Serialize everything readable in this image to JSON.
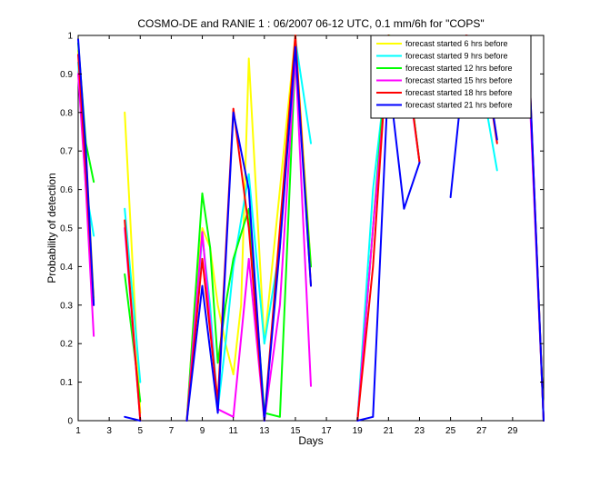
{
  "chart_data": {
    "type": "line",
    "title": "COSMO-DE and RANIE 1 : 06/2007 06-12 UTC, 0.1 mm/6h for \"COPS\"",
    "xlabel": "Days",
    "ylabel": "Probability of detection",
    "xlim": [
      1,
      31
    ],
    "ylim": [
      0,
      1
    ],
    "xticks": [
      1,
      3,
      5,
      7,
      9,
      11,
      13,
      15,
      17,
      19,
      21,
      23,
      25,
      27,
      29
    ],
    "yticks": [
      0,
      0.1,
      0.2,
      0.3,
      0.4,
      0.5,
      0.6,
      0.7,
      0.8,
      0.9,
      1
    ],
    "ytick_labels": [
      "0",
      "0.1",
      "0.2",
      "0.3",
      "0.4",
      "0.5",
      "0.6",
      "0.7",
      "0.8",
      "0.9",
      "1"
    ],
    "legend_position": "top-right",
    "grid": false,
    "series": [
      {
        "name": "forecast started 6 hrs before",
        "color": "#ffff00",
        "x": [
          1,
          1.5,
          2,
          null,
          4,
          5,
          null,
          8,
          8.5,
          9,
          9.5,
          10,
          10.5,
          11,
          11.5,
          12,
          13,
          14,
          15,
          16,
          null,
          19,
          20,
          20.5,
          21,
          22,
          23,
          null,
          25,
          26,
          27,
          28,
          null,
          30,
          31
        ],
        "y": [
          0.96,
          0.7,
          0.32,
          null,
          0.8,
          0.02,
          null,
          0.0,
          0.3,
          0.5,
          0.45,
          0.3,
          0.2,
          0.12,
          0.3,
          0.94,
          0.2,
          0.6,
          1.0,
          0.4,
          null,
          0.0,
          0.5,
          0.75,
          1.0,
          0.99,
          0.67,
          null,
          0.82,
          0.99,
          0.99,
          0.73,
          null,
          0.98,
          0.0
        ]
      },
      {
        "name": "forecast started 9 hrs before",
        "color": "#00ffff",
        "x": [
          1,
          1.5,
          2,
          null,
          4,
          5,
          null,
          8,
          9,
          9.5,
          10,
          10.5,
          11,
          12,
          13,
          14,
          15,
          16,
          null,
          19,
          20,
          21,
          22,
          23,
          null,
          25,
          26,
          27,
          28,
          null,
          30,
          31
        ],
        "y": [
          0.93,
          0.6,
          0.48,
          null,
          0.55,
          0.1,
          null,
          0.0,
          0.48,
          0.3,
          0.03,
          0.2,
          0.4,
          0.64,
          0.2,
          0.45,
          0.99,
          0.72,
          null,
          0.0,
          0.6,
          0.95,
          0.99,
          0.67,
          null,
          0.84,
          0.96,
          0.88,
          0.65,
          null,
          0.96,
          0.0
        ]
      },
      {
        "name": "forecast started 12 hrs before",
        "color": "#00ff00",
        "x": [
          1,
          1.5,
          2,
          null,
          4,
          5,
          null,
          8,
          9,
          9.5,
          10,
          10.5,
          11,
          12,
          13,
          14,
          15,
          16,
          null,
          19,
          20,
          21,
          22,
          23,
          null,
          25,
          26,
          27,
          28,
          null,
          30,
          31
        ],
        "y": [
          0.98,
          0.72,
          0.62,
          null,
          0.38,
          0.05,
          null,
          0.0,
          0.59,
          0.45,
          0.15,
          0.3,
          0.42,
          0.55,
          0.02,
          0.01,
          0.95,
          0.4,
          null,
          0.0,
          0.5,
          1.0,
          0.99,
          0.67,
          null,
          0.88,
          0.99,
          0.98,
          0.83,
          null,
          0.97,
          0.0
        ]
      },
      {
        "name": "forecast started 15 hrs before",
        "color": "#ff00ff",
        "x": [
          1,
          1.5,
          2,
          null,
          4,
          5,
          null,
          8,
          9,
          10,
          11,
          12,
          13,
          14,
          15,
          16,
          null,
          19,
          20,
          21,
          22,
          23,
          null,
          25,
          26,
          27,
          28,
          null,
          30,
          31
        ],
        "y": [
          0.9,
          0.6,
          0.22,
          null,
          0.5,
          0.0,
          null,
          0.0,
          0.49,
          0.03,
          0.01,
          0.42,
          0.0,
          0.3,
          0.95,
          0.09,
          null,
          0.0,
          0.5,
          0.95,
          0.97,
          0.67,
          null,
          0.85,
          0.99,
          0.94,
          0.86,
          null,
          0.94,
          0.0
        ]
      },
      {
        "name": "forecast started 18 hrs before",
        "color": "#ff0000",
        "x": [
          1,
          1.5,
          2,
          null,
          4,
          5,
          null,
          8,
          9,
          10,
          11,
          12,
          13,
          14,
          15,
          16,
          null,
          19,
          20,
          21,
          22,
          23,
          null,
          25,
          26,
          27,
          28,
          null,
          30,
          31
        ],
        "y": [
          0.95,
          0.65,
          0.3,
          null,
          0.52,
          0.0,
          null,
          0.0,
          0.42,
          0.05,
          0.81,
          0.5,
          0.0,
          0.5,
          1.0,
          0.35,
          null,
          0.0,
          0.4,
          1.0,
          0.98,
          0.67,
          null,
          0.81,
          1.0,
          0.99,
          0.72,
          null,
          0.99,
          0.0
        ]
      },
      {
        "name": "forecast started 21 hrs before",
        "color": "#0000ff",
        "x": [
          1,
          1.5,
          2,
          null,
          4,
          5,
          null,
          8,
          9,
          10,
          11,
          12,
          13,
          14,
          15,
          16,
          null,
          19,
          20,
          21,
          22,
          23,
          null,
          25,
          26,
          27,
          28,
          null,
          30,
          31
        ],
        "y": [
          0.99,
          0.7,
          0.3,
          null,
          0.01,
          0.0,
          null,
          0.0,
          0.35,
          0.02,
          0.8,
          0.6,
          0.0,
          0.45,
          0.97,
          0.35,
          null,
          0.0,
          0.01,
          0.9,
          0.55,
          0.67,
          null,
          0.58,
          0.97,
          0.99,
          0.73,
          null,
          0.99,
          0.0
        ]
      }
    ]
  }
}
